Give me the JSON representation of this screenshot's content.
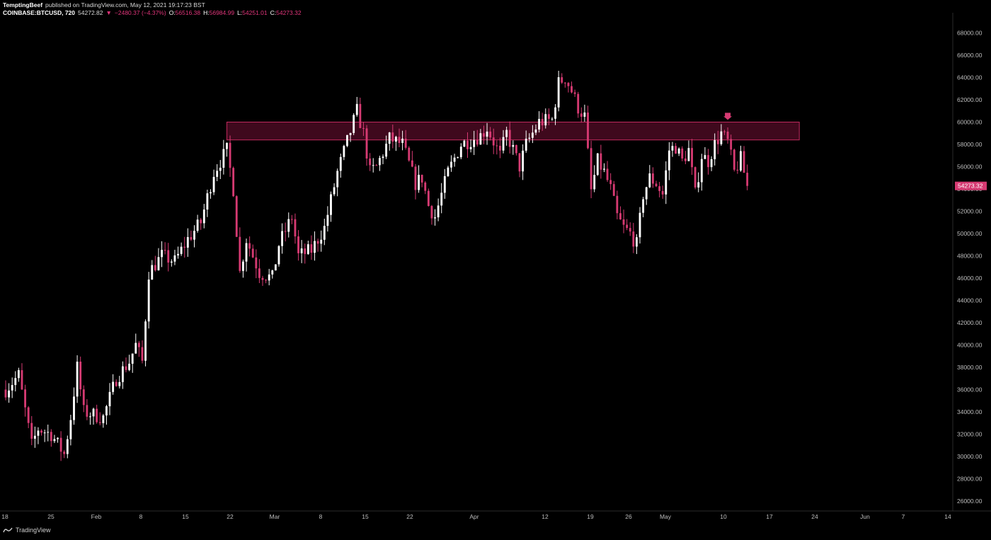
{
  "header": {
    "author": "TemptingBeef",
    "published": "published on TradingView.com, May 12, 2021 19:17:23 BST",
    "symbol": "COINBASE:BTCUSD, 720",
    "last": "54272.82",
    "change": "−2480.37 (−4.37%)",
    "o_label": "O:",
    "o_value": "56516.38",
    "h_label": "H:",
    "h_value": "56984.99",
    "l_label": "L:",
    "l_value": "54251.01",
    "c_label": "C:",
    "c_value": "54273.32"
  },
  "footer": {
    "brand": "TradingView",
    "icon": "tradingview-logo-icon"
  },
  "colors": {
    "background": "#000000",
    "up": "#ffffff",
    "down": "#d63a72",
    "zone_fill": "#4a0a22",
    "zone_border": "#c02a5e",
    "axis_text": "#bdbdbd",
    "price_badge": "#d63a72"
  },
  "chart_data": {
    "type": "candlestick",
    "title": "",
    "xlabel": "",
    "ylabel": "",
    "ylim": [
      25000,
      69000
    ],
    "y_ticks": [
      "68000.00",
      "66000.00",
      "64000.00",
      "62000.00",
      "60000.00",
      "58000.00",
      "56000.00",
      "54000.00",
      "52000.00",
      "50000.00",
      "48000.00",
      "46000.00",
      "44000.00",
      "42000.00",
      "40000.00",
      "38000.00",
      "36000.00",
      "34000.00",
      "32000.00",
      "30000.00",
      "28000.00",
      "26000.00"
    ],
    "x_ticks": [
      "18",
      "25",
      "Feb",
      "8",
      "15",
      "22",
      "Mar",
      "8",
      "15",
      "22",
      "Apr",
      "12",
      "19",
      "26",
      "May",
      "10",
      "17",
      "24",
      "Jun",
      "7",
      "14"
    ],
    "last_price_label": "54273.32",
    "resistance_zone": {
      "low": 58400,
      "high": 60000,
      "x_start": "Feb 21",
      "x_end": "May 20"
    },
    "marker": {
      "type": "down-arrow",
      "x": "May 9",
      "y": 60200
    },
    "anchors": [
      [
        "Jan 18",
        36000
      ],
      [
        "Jan 20",
        37300
      ],
      [
        "Jan 22",
        31000
      ],
      [
        "Jan 23",
        32500
      ],
      [
        "Jan 25",
        32000
      ],
      [
        "Jan 27",
        30200
      ],
      [
        "Jan 28",
        33500
      ],
      [
        "Jan 29",
        38000
      ],
      [
        "Jan 30",
        34000
      ],
      [
        "Feb 2",
        33500
      ],
      [
        "Feb 4",
        37000
      ],
      [
        "Feb 6",
        38500
      ],
      [
        "Feb 7",
        40000
      ],
      [
        "Feb 8",
        38500
      ],
      [
        "Feb 9",
        46500
      ],
      [
        "Feb 11",
        48000
      ],
      [
        "Feb 13",
        47500
      ],
      [
        "Feb 15",
        49500
      ],
      [
        "Feb 17",
        51000
      ],
      [
        "Feb 19",
        55500
      ],
      [
        "Feb 21",
        57500
      ],
      [
        "Feb 22",
        54000
      ],
      [
        "Feb 23",
        46500
      ],
      [
        "Feb 24",
        49500
      ],
      [
        "Feb 26",
        46500
      ],
      [
        "Feb 28",
        46000
      ],
      [
        "Mar 1",
        49000
      ],
      [
        "Mar 3",
        51500
      ],
      [
        "Mar 4",
        48000
      ],
      [
        "Mar 6",
        48500
      ],
      [
        "Mar 8",
        50500
      ],
      [
        "Mar 10",
        55500
      ],
      [
        "Mar 13",
        61000
      ],
      [
        "Mar 14",
        59000
      ],
      [
        "Mar 15",
        55500
      ],
      [
        "Mar 16",
        56000
      ],
      [
        "Mar 18",
        58500
      ],
      [
        "Mar 20",
        58000
      ],
      [
        "Mar 22",
        54500
      ],
      [
        "Mar 23",
        55000
      ],
      [
        "Mar 24",
        52500
      ],
      [
        "Mar 25",
        51500
      ],
      [
        "Mar 27",
        55500
      ],
      [
        "Mar 29",
        58000
      ],
      [
        "Apr 1",
        58800
      ],
      [
        "Apr 2",
        59500
      ],
      [
        "Apr 4",
        57000
      ],
      [
        "Apr 5",
        59000
      ],
      [
        "Apr 7",
        56000
      ],
      [
        "Apr 8",
        58000
      ],
      [
        "Apr 10",
        60000
      ],
      [
        "Apr 12",
        60200
      ],
      [
        "Apr 13",
        63500
      ],
      [
        "Apr 14",
        64000
      ],
      [
        "Apr 15",
        62800
      ],
      [
        "Apr 16",
        61300
      ],
      [
        "Apr 17",
        60500
      ],
      [
        "Apr 18",
        53800
      ],
      [
        "Apr 19",
        56500
      ],
      [
        "Apr 20",
        55500
      ],
      [
        "Apr 21",
        54000
      ],
      [
        "Apr 22",
        51500
      ],
      [
        "Apr 23",
        50500
      ],
      [
        "Apr 24",
        50000
      ],
      [
        "Apr 25",
        49000
      ],
      [
        "Apr 26",
        53500
      ],
      [
        "Apr 27",
        55000
      ],
      [
        "Apr 28",
        54500
      ],
      [
        "Apr 29",
        53500
      ],
      [
        "Apr 30",
        57500
      ],
      [
        "May 1",
        57800
      ],
      [
        "May 2",
        56500
      ],
      [
        "May 3",
        57500
      ],
      [
        "May 4",
        53500
      ],
      [
        "May 5",
        57000
      ],
      [
        "May 6",
        56500
      ],
      [
        "May 7",
        58000
      ],
      [
        "May 8",
        59000
      ],
      [
        "May 9",
        58200
      ],
      [
        "May 10",
        55500
      ],
      [
        "May 11",
        56700
      ],
      [
        "May 12",
        54273
      ]
    ]
  }
}
